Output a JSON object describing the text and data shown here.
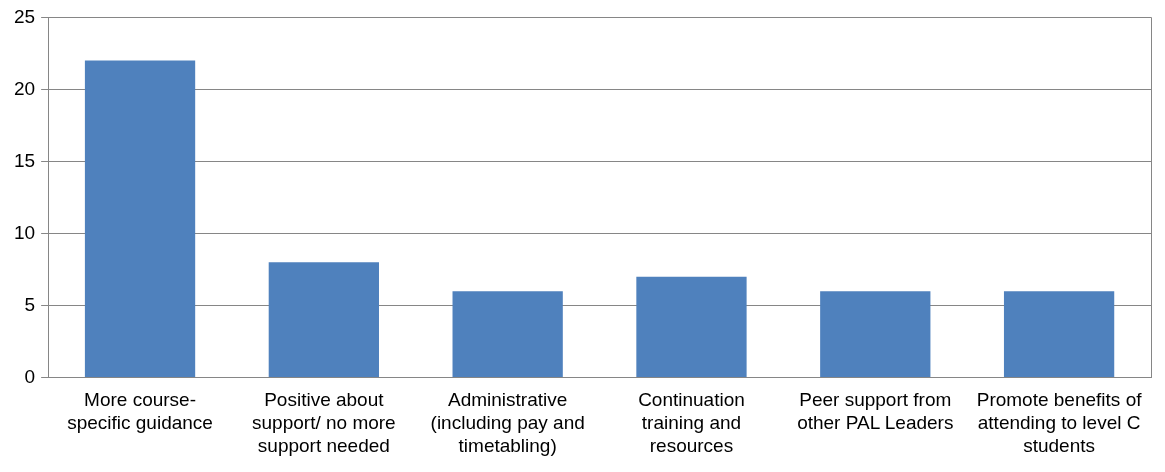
{
  "chart_data": {
    "type": "bar",
    "categories": [
      "More course-specific guidance",
      "Positive about support/ no more support needed",
      "Administrative (including pay and timetabling)",
      "Continuation training and resources",
      "Peer support from other PAL Leaders",
      "Promote benefits of attending to level C students"
    ],
    "values": [
      22,
      8,
      6,
      7,
      6,
      6
    ],
    "color": "#4f81bd",
    "ylim": [
      0,
      25
    ],
    "yticks": [
      0,
      5,
      10,
      15,
      20,
      25
    ],
    "grid": "y",
    "legend": false
  }
}
